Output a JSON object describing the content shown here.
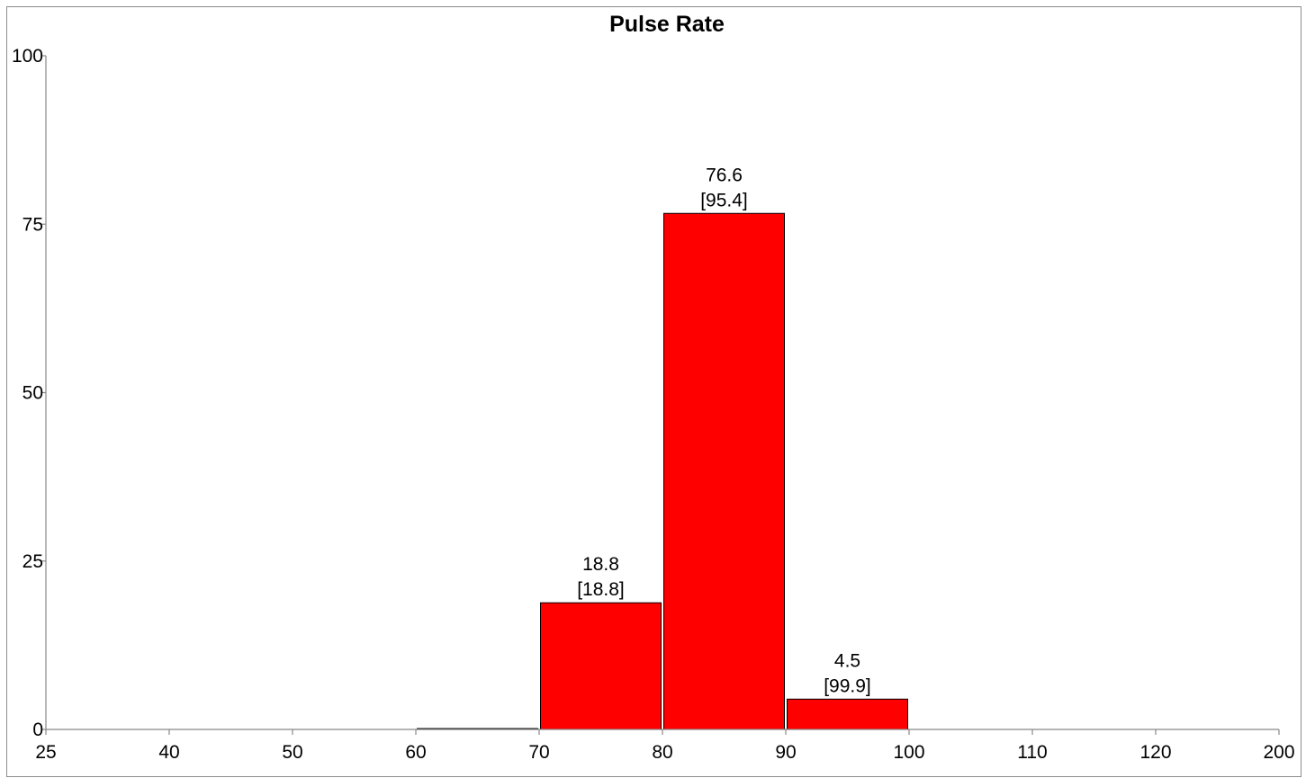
{
  "chart_data": {
    "type": "bar",
    "title": "Pulse Rate",
    "xlabel": "",
    "ylabel": "",
    "x_ticks": [
      "25",
      "40",
      "50",
      "60",
      "70",
      "80",
      "90",
      "100",
      "110",
      "120",
      "200"
    ],
    "y_ticks": [
      "0",
      "25",
      "50",
      "75",
      "100"
    ],
    "ylim": [
      0,
      100
    ],
    "bins": [
      {
        "from": "60",
        "to": "70",
        "value": 0.1,
        "label": "",
        "cumulative_label": ""
      },
      {
        "from": "70",
        "to": "80",
        "value": 18.8,
        "label": "18.8",
        "cumulative_label": "[18.8]"
      },
      {
        "from": "80",
        "to": "90",
        "value": 76.6,
        "label": "76.6",
        "cumulative_label": "[95.4]"
      },
      {
        "from": "90",
        "to": "100",
        "value": 4.5,
        "label": "4.5",
        "cumulative_label": "[99.9]"
      }
    ],
    "bar_color": "#ff0000",
    "grid": false,
    "legend": "none"
  }
}
